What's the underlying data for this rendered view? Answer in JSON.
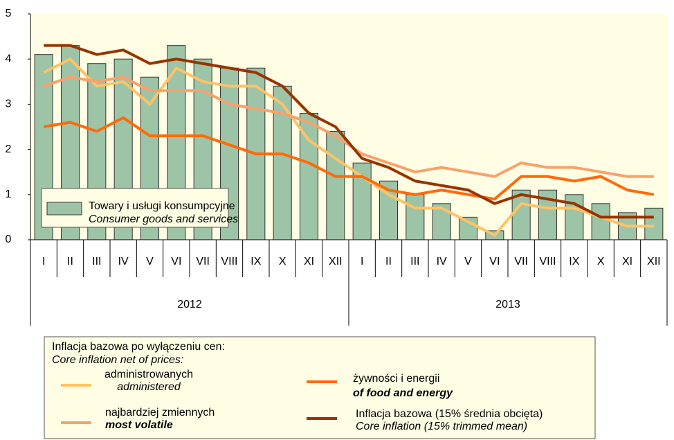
{
  "chart_data": {
    "type": "bar_line",
    "categories": [
      "I",
      "II",
      "III",
      "IV",
      "V",
      "VI",
      "VII",
      "VIII",
      "IX",
      "X",
      "XI",
      "XII",
      "I",
      "II",
      "III",
      "IV",
      "V",
      "VI",
      "VII",
      "VIII",
      "IX",
      "X",
      "XI",
      "XII"
    ],
    "years": [
      "2012",
      "2013"
    ],
    "ylim": [
      0,
      5
    ],
    "yticks": [
      0,
      1,
      2,
      3,
      4,
      5
    ],
    "legend_heading": "Inflacja bazowa po wyłączeniu cen:",
    "legend_heading_en": "Core inflation net of prices:",
    "bars": {
      "name": "Towary i usługi konsumpcyjne",
      "name_en": "Consumer goods and services",
      "color": "#9dc4a6",
      "values": [
        4.1,
        4.3,
        3.9,
        4.0,
        3.6,
        4.3,
        4.0,
        3.8,
        3.8,
        3.4,
        2.8,
        2.4,
        1.7,
        1.3,
        1.0,
        0.8,
        0.5,
        0.2,
        1.1,
        1.1,
        1.0,
        0.8,
        0.6,
        0.7
      ]
    },
    "series": [
      {
        "name": "administrowanych",
        "name_en": "administered",
        "color": "#ffc266",
        "values": [
          3.7,
          4.0,
          3.4,
          3.5,
          3.0,
          3.8,
          3.5,
          3.4,
          3.4,
          3.0,
          2.2,
          1.8,
          1.4,
          1.0,
          0.7,
          0.7,
          0.4,
          0.1,
          0.8,
          0.7,
          0.7,
          0.5,
          0.3,
          0.3
        ]
      },
      {
        "name": "najbardziej zmiennych",
        "name_en": "most volatile",
        "color": "#f7a26c",
        "values": [
          3.4,
          3.6,
          3.5,
          3.6,
          3.3,
          3.3,
          3.3,
          3.0,
          2.9,
          2.8,
          2.6,
          2.3,
          1.9,
          1.7,
          1.5,
          1.6,
          1.5,
          1.4,
          1.7,
          1.6,
          1.6,
          1.5,
          1.4,
          1.4
        ]
      },
      {
        "name": "żywności i energii",
        "name_en": "of food and energy",
        "color": "#ff6a0a",
        "values": [
          2.5,
          2.6,
          2.4,
          2.7,
          2.3,
          2.3,
          2.3,
          2.1,
          1.9,
          1.9,
          1.7,
          1.4,
          1.4,
          1.1,
          1.0,
          1.1,
          1.0,
          0.9,
          1.4,
          1.4,
          1.3,
          1.4,
          1.1,
          1.0
        ]
      },
      {
        "name": "Inflacja bazowa (15% średnia obcięta)",
        "name_en": "Core inflation (15% trimmed mean)",
        "color": "#993300",
        "values": [
          4.3,
          4.3,
          4.1,
          4.2,
          3.9,
          4.0,
          3.9,
          3.8,
          3.7,
          3.4,
          2.8,
          2.5,
          1.8,
          1.6,
          1.3,
          1.2,
          1.1,
          0.8,
          1.0,
          0.9,
          0.8,
          0.5,
          0.5,
          0.5
        ]
      }
    ]
  }
}
